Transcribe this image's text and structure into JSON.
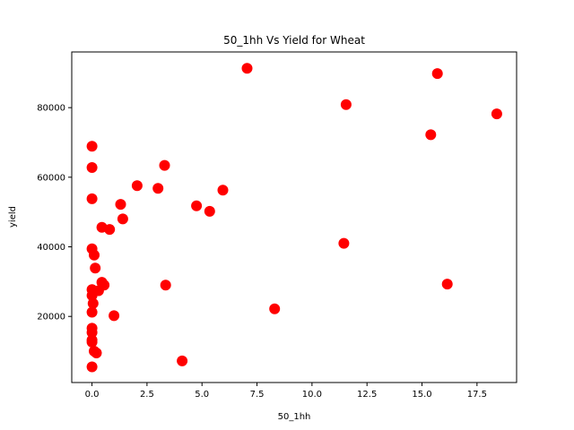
{
  "chart_data": {
    "type": "scatter",
    "title": "50_1hh Vs Yield for Wheat",
    "xlabel": "50_1hh",
    "ylabel": "yield",
    "xlim": [
      -0.92,
      19.3
    ],
    "ylim": [
      1000,
      96000
    ],
    "x_ticks": [
      0.0,
      2.5,
      5.0,
      7.5,
      10.0,
      12.5,
      15.0,
      17.5
    ],
    "x_tick_labels": [
      "0.0",
      "2.5",
      "5.0",
      "7.5",
      "10.0",
      "12.5",
      "15.0",
      "17.5"
    ],
    "y_ticks": [
      20000,
      40000,
      60000,
      80000
    ],
    "y_tick_labels": [
      "20000",
      "40000",
      "60000",
      "80000"
    ],
    "grid": false,
    "marker_color": "#ff0000",
    "series": [
      {
        "points": [
          [
            0.0,
            68900
          ],
          [
            0.0,
            62800
          ],
          [
            0.0,
            53800
          ],
          [
            0.0,
            39400
          ],
          [
            0.1,
            37600
          ],
          [
            0.15,
            33900
          ],
          [
            0.0,
            27700
          ],
          [
            0.0,
            26000
          ],
          [
            0.05,
            23700
          ],
          [
            0.0,
            21200
          ],
          [
            0.0,
            16600
          ],
          [
            0.0,
            15400
          ],
          [
            0.0,
            13200
          ],
          [
            0.0,
            12600
          ],
          [
            0.1,
            10000
          ],
          [
            0.2,
            9500
          ],
          [
            0.0,
            5500
          ],
          [
            0.3,
            27400
          ],
          [
            0.45,
            29800
          ],
          [
            0.55,
            29000
          ],
          [
            0.45,
            45600
          ],
          [
            0.8,
            45000
          ],
          [
            1.0,
            20200
          ],
          [
            1.3,
            52200
          ],
          [
            1.4,
            48000
          ],
          [
            2.05,
            57600
          ],
          [
            3.0,
            56800
          ],
          [
            3.3,
            63400
          ],
          [
            3.35,
            29000
          ],
          [
            4.1,
            7200
          ],
          [
            4.75,
            51800
          ],
          [
            5.35,
            50200
          ],
          [
            5.95,
            56300
          ],
          [
            7.05,
            91300
          ],
          [
            8.3,
            22200
          ],
          [
            11.45,
            41000
          ],
          [
            11.55,
            80900
          ],
          [
            15.4,
            72200
          ],
          [
            15.7,
            89800
          ],
          [
            16.15,
            29300
          ],
          [
            18.4,
            78200
          ]
        ]
      }
    ]
  }
}
